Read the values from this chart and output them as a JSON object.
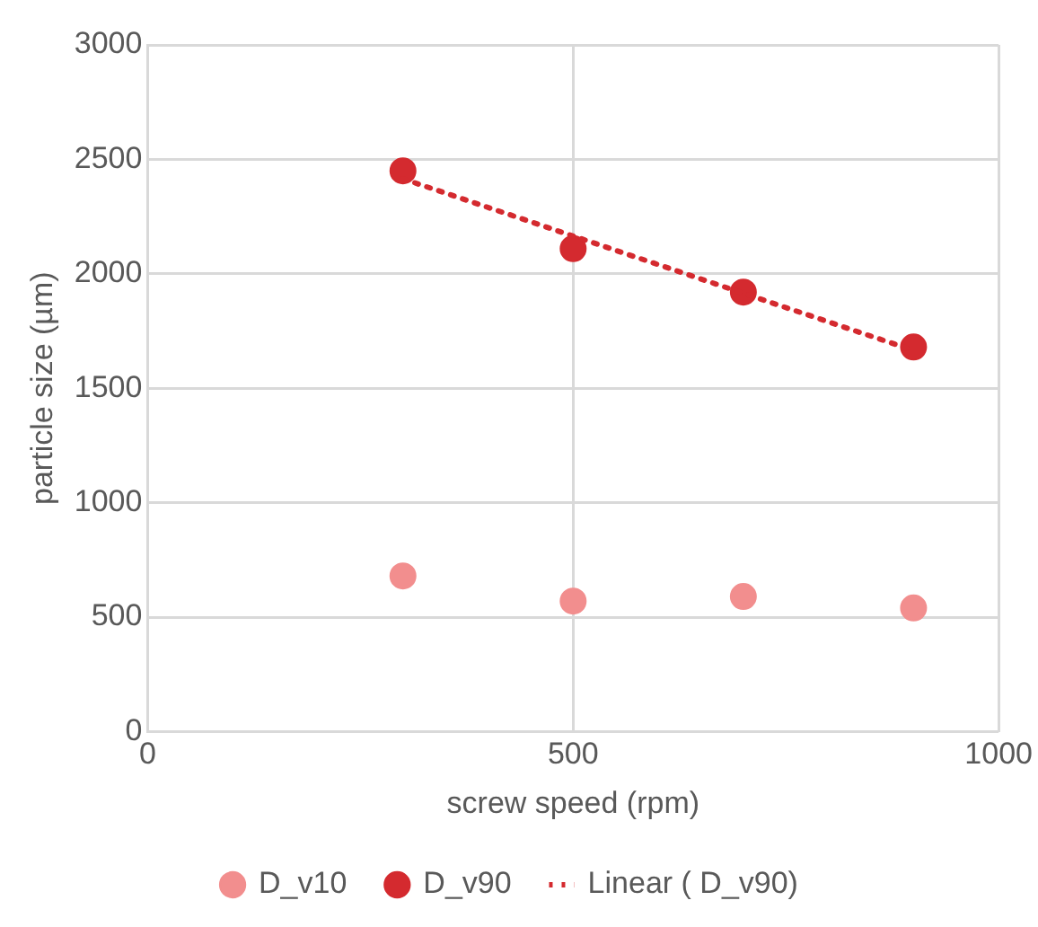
{
  "chart_data": {
    "type": "scatter",
    "xlabel": "screw speed (rpm)",
    "ylabel": "particle size (µm)",
    "xlim": [
      0,
      1000
    ],
    "xticks": [
      0,
      500,
      1000
    ],
    "ylim": [
      0,
      3000
    ],
    "yticks": [
      0,
      500,
      1000,
      1500,
      2000,
      2500,
      3000
    ],
    "grid": true,
    "legend": "bottom",
    "marker": "circle",
    "series": [
      {
        "name": "D_v10",
        "color": "#f28e8e",
        "x": [
          300,
          500,
          700,
          900
        ],
        "values": [
          680,
          570,
          590,
          540
        ]
      },
      {
        "name": "D_v90",
        "color": "#d42a2f",
        "x": [
          300,
          500,
          700,
          900
        ],
        "values": [
          2450,
          2110,
          1920,
          1680
        ]
      },
      {
        "name": "Linear ( D_v90)",
        "type": "line",
        "color": "#d42a2f",
        "line_style": "dotted",
        "marker": "none",
        "x": [
          300,
          900
        ],
        "values": [
          2415,
          1665
        ]
      }
    ]
  }
}
